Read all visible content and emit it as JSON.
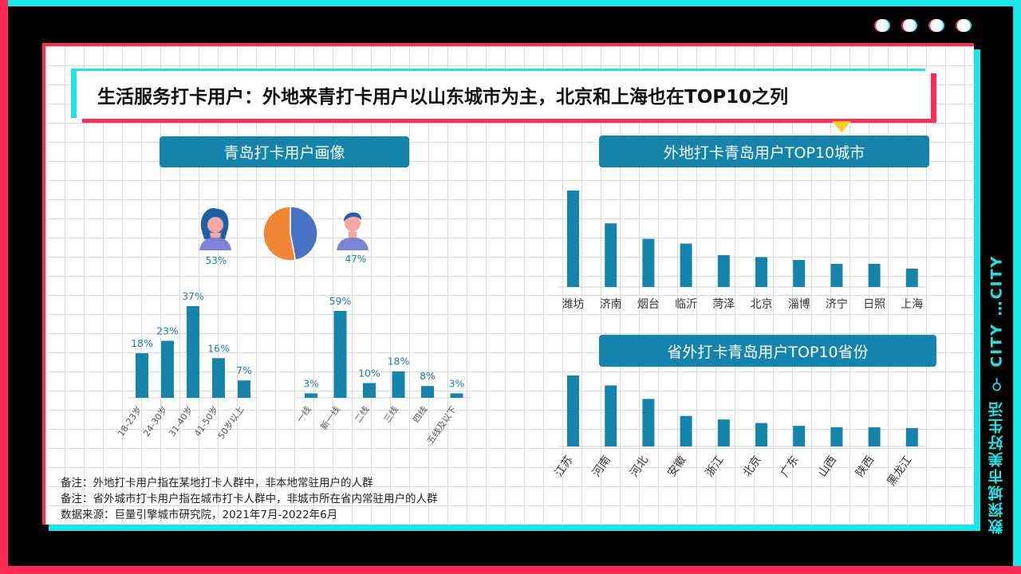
{
  "title": "生活服务打卡用户：外地来青打卡用户以山东城市为主，北京和上海也在TOP10之列",
  "side_label": "数探城市美好生活 ⚲ CITY …CITY",
  "sections": {
    "left": "青岛打卡用户画像",
    "right_top": "外地打卡青岛用户TOP10城市",
    "right_bottom": "省外打卡青岛用户TOP10省份"
  },
  "notes": [
    "备注：外地打卡用户指在某地打卡人群中，非本地常驻用户的人群",
    "备注：省外城市打卡用户指在城市打卡人群中，非城市所在省内常驻用户的人群",
    "数据来源：巨量引擎城市研究院，2021年7月-2022年6月"
  ],
  "colors": {
    "bar": "#1584ad",
    "female": "#f08534",
    "male": "#4a72c4",
    "label": "#1b7fb0"
  },
  "chart_data": [
    {
      "type": "pie",
      "categories": [
        "女",
        "男"
      ],
      "values": [
        53,
        47
      ],
      "labels": [
        "53%",
        "47%"
      ],
      "icons": [
        "female-avatar-icon",
        "male-avatar-icon"
      ]
    },
    {
      "type": "bar",
      "categories": [
        "18-23岁",
        "24-30岁",
        "31-40岁",
        "41-50岁",
        "50岁以上"
      ],
      "values": [
        18,
        23,
        37,
        16,
        7
      ],
      "labels": [
        "18%",
        "23%",
        "37%",
        "16%",
        "7%"
      ]
    },
    {
      "type": "bar",
      "categories": [
        "一线",
        "新一线",
        "二线",
        "三线",
        "四线",
        "五线及以下"
      ],
      "values": [
        3,
        59,
        10,
        18,
        8,
        3
      ],
      "labels": [
        "3%",
        "59%",
        "10%",
        "18%",
        "8%",
        "3%"
      ]
    },
    {
      "type": "bar",
      "categories": [
        "潍坊",
        "济南",
        "烟台",
        "临沂",
        "菏泽",
        "北京",
        "淄博",
        "济宁",
        "日照",
        "上海"
      ],
      "values": [
        100,
        66,
        50,
        45,
        33,
        31,
        28,
        24,
        24,
        19
      ]
    },
    {
      "type": "bar",
      "categories": [
        "江苏",
        "河南",
        "河北",
        "安徽",
        "浙江",
        "北京",
        "广东",
        "山西",
        "陕西",
        "黑龙江"
      ],
      "values": [
        100,
        86,
        67,
        43,
        38,
        33,
        29,
        27,
        27,
        26
      ]
    }
  ]
}
